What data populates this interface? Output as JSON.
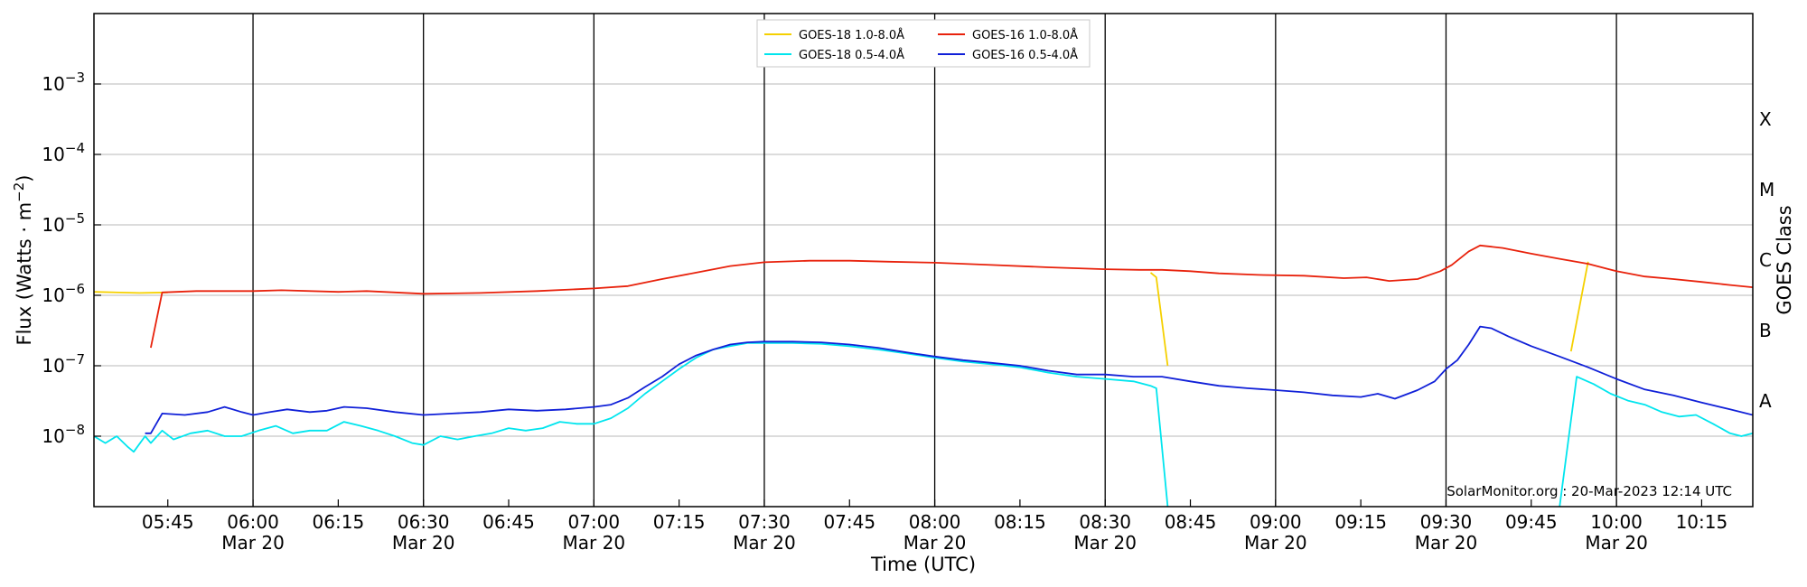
{
  "chart_data": {
    "type": "line",
    "y_scale": "log",
    "ylim": [
      1e-09,
      0.01
    ],
    "xlim": [
      "05:32",
      "10:24"
    ],
    "date": "Mar 20",
    "xlabel": "Time (UTC)",
    "ylabel_main": "Flux (Watts · m",
    "ylabel_sup": "−2",
    "ylabel_close": ")",
    "right_axis_label": "GOES Class",
    "grid": "horizontal lines at each decade; black vertical lines every 30 minutes",
    "legend_position": "top-center",
    "credit": "SolarMonitor.org : 20-Mar-2023 12:14 UTC",
    "x_ticks": [
      {
        "time": "05:45",
        "label": "05:45",
        "date_label": ""
      },
      {
        "time": "06:00",
        "label": "06:00",
        "date_label": "Mar 20"
      },
      {
        "time": "06:15",
        "label": "06:15",
        "date_label": ""
      },
      {
        "time": "06:30",
        "label": "06:30",
        "date_label": "Mar 20"
      },
      {
        "time": "06:45",
        "label": "06:45",
        "date_label": ""
      },
      {
        "time": "07:00",
        "label": "07:00",
        "date_label": "Mar 20"
      },
      {
        "time": "07:15",
        "label": "07:15",
        "date_label": ""
      },
      {
        "time": "07:30",
        "label": "07:30",
        "date_label": "Mar 20"
      },
      {
        "time": "07:45",
        "label": "07:45",
        "date_label": ""
      },
      {
        "time": "08:00",
        "label": "08:00",
        "date_label": "Mar 20"
      },
      {
        "time": "08:15",
        "label": "08:15",
        "date_label": ""
      },
      {
        "time": "08:30",
        "label": "08:30",
        "date_label": "Mar 20"
      },
      {
        "time": "08:45",
        "label": "08:45",
        "date_label": ""
      },
      {
        "time": "09:00",
        "label": "09:00",
        "date_label": "Mar 20"
      },
      {
        "time": "09:15",
        "label": "09:15",
        "date_label": ""
      },
      {
        "time": "09:30",
        "label": "09:30",
        "date_label": "Mar 20"
      },
      {
        "time": "09:45",
        "label": "09:45",
        "date_label": ""
      },
      {
        "time": "10:00",
        "label": "10:00",
        "date_label": "Mar 20"
      },
      {
        "time": "10:15",
        "label": "10:15",
        "date_label": ""
      }
    ],
    "y_ticks": [
      {
        "value": 1e-08,
        "label": "10",
        "exp": "−8"
      },
      {
        "value": 1e-07,
        "label": "10",
        "exp": "−7"
      },
      {
        "value": 1e-06,
        "label": "10",
        "exp": "−6"
      },
      {
        "value": 1e-05,
        "label": "10",
        "exp": "−5"
      },
      {
        "value": 0.0001,
        "label": "10",
        "exp": "−4"
      },
      {
        "value": 0.001,
        "label": "10",
        "exp": "−3"
      }
    ],
    "goes_classes": [
      {
        "label": "A",
        "value": 3.16e-08
      },
      {
        "label": "B",
        "value": 3.16e-07
      },
      {
        "label": "C",
        "value": 3.16e-06
      },
      {
        "label": "M",
        "value": 3.16e-05
      },
      {
        "label": "X",
        "value": 0.000316
      }
    ],
    "series": [
      {
        "name": "GOES-18 1.0-8.0Å",
        "color": "#f5d000",
        "segments": [
          [
            [
              "05:32",
              1.12e-06
            ],
            [
              "05:40",
              1.08e-06
            ],
            [
              "05:45",
              1.1e-06
            ]
          ],
          [
            [
              "08:38",
              2.1e-06
            ],
            [
              "08:39",
              1.8e-06
            ],
            [
              "08:41",
              1e-07
            ]
          ],
          [
            [
              "09:52",
              1.6e-07
            ],
            [
              "09:55",
              3e-06
            ]
          ]
        ]
      },
      {
        "name": "GOES-18 0.5-4.0Å",
        "color": "#00e5ee",
        "segments": [
          [
            [
              "05:32",
              1e-08
            ],
            [
              "05:34",
              8e-09
            ],
            [
              "05:36",
              1e-08
            ],
            [
              "05:38",
              7e-09
            ],
            [
              "05:39",
              6e-09
            ],
            [
              "05:41",
              1e-08
            ],
            [
              "05:42",
              8e-09
            ],
            [
              "05:44",
              1.2e-08
            ],
            [
              "05:46",
              9e-09
            ],
            [
              "05:49",
              1.1e-08
            ],
            [
              "05:52",
              1.2e-08
            ],
            [
              "05:55",
              1e-08
            ],
            [
              "05:58",
              1e-08
            ],
            [
              "06:01",
              1.2e-08
            ],
            [
              "06:04",
              1.4e-08
            ],
            [
              "06:07",
              1.1e-08
            ],
            [
              "06:10",
              1.2e-08
            ],
            [
              "06:13",
              1.2e-08
            ],
            [
              "06:16",
              1.6e-08
            ],
            [
              "06:19",
              1.4e-08
            ],
            [
              "06:22",
              1.2e-08
            ],
            [
              "06:25",
              1e-08
            ],
            [
              "06:28",
              8e-09
            ],
            [
              "06:30",
              7.5e-09
            ],
            [
              "06:33",
              1e-08
            ],
            [
              "06:36",
              9e-09
            ],
            [
              "06:39",
              1e-08
            ],
            [
              "06:42",
              1.1e-08
            ],
            [
              "06:45",
              1.3e-08
            ],
            [
              "06:48",
              1.2e-08
            ],
            [
              "06:51",
              1.3e-08
            ],
            [
              "06:54",
              1.6e-08
            ],
            [
              "06:57",
              1.5e-08
            ],
            [
              "07:00",
              1.5e-08
            ],
            [
              "07:03",
              1.8e-08
            ],
            [
              "07:06",
              2.5e-08
            ],
            [
              "07:09",
              4e-08
            ],
            [
              "07:12",
              6e-08
            ],
            [
              "07:15",
              9e-08
            ],
            [
              "07:18",
              1.3e-07
            ],
            [
              "07:21",
              1.7e-07
            ],
            [
              "07:24",
              1.9e-07
            ],
            [
              "07:27",
              2.1e-07
            ],
            [
              "07:30",
              2.1e-07
            ],
            [
              "07:35",
              2.1e-07
            ],
            [
              "07:40",
              2.05e-07
            ],
            [
              "07:45",
              1.9e-07
            ],
            [
              "07:50",
              1.7e-07
            ],
            [
              "07:55",
              1.5e-07
            ],
            [
              "08:00",
              1.3e-07
            ],
            [
              "08:05",
              1.15e-07
            ],
            [
              "08:10",
              1.05e-07
            ],
            [
              "08:15",
              9.5e-08
            ],
            [
              "08:20",
              8e-08
            ],
            [
              "08:25",
              7e-08
            ],
            [
              "08:30",
              6.5e-08
            ],
            [
              "08:35",
              6e-08
            ],
            [
              "08:38",
              5.2e-08
            ],
            [
              "08:39",
              4.8e-08
            ],
            [
              "08:41",
              1e-09
            ]
          ],
          [
            [
              "09:50",
              1e-09
            ],
            [
              "09:53",
              7e-08
            ],
            [
              "09:56",
              5.5e-08
            ],
            [
              "09:59",
              4e-08
            ],
            [
              "10:02",
              3.2e-08
            ],
            [
              "10:05",
              2.8e-08
            ],
            [
              "10:08",
              2.2e-08
            ],
            [
              "10:11",
              1.9e-08
            ],
            [
              "10:14",
              2e-08
            ],
            [
              "10:17",
              1.5e-08
            ],
            [
              "10:20",
              1.1e-08
            ],
            [
              "10:22",
              1e-08
            ],
            [
              "10:24",
              1.1e-08
            ]
          ]
        ]
      },
      {
        "name": "GOES-16 1.0-8.0Å",
        "color": "#e8220c",
        "segments": [
          [
            [
              "05:42",
              1.8e-07
            ],
            [
              "05:44",
              1.1e-06
            ],
            [
              "05:50",
              1.15e-06
            ],
            [
              "06:00",
              1.15e-06
            ],
            [
              "06:05",
              1.18e-06
            ],
            [
              "06:15",
              1.12e-06
            ],
            [
              "06:20",
              1.15e-06
            ],
            [
              "06:30",
              1.05e-06
            ],
            [
              "06:40",
              1.08e-06
            ],
            [
              "06:50",
              1.15e-06
            ],
            [
              "07:00",
              1.25e-06
            ],
            [
              "07:06",
              1.35e-06
            ],
            [
              "07:12",
              1.7e-06
            ],
            [
              "07:18",
              2.1e-06
            ],
            [
              "07:24",
              2.6e-06
            ],
            [
              "07:30",
              2.95e-06
            ],
            [
              "07:38",
              3.1e-06
            ],
            [
              "07:45",
              3.1e-06
            ],
            [
              "07:52",
              3e-06
            ],
            [
              "08:00",
              2.9e-06
            ],
            [
              "08:10",
              2.7e-06
            ],
            [
              "08:20",
              2.5e-06
            ],
            [
              "08:30",
              2.35e-06
            ],
            [
              "08:36",
              2.3e-06
            ],
            [
              "08:40",
              2.3e-06
            ],
            [
              "08:45",
              2.2e-06
            ],
            [
              "08:50",
              2.05e-06
            ],
            [
              "08:57",
              1.95e-06
            ],
            [
              "09:05",
              1.9e-06
            ],
            [
              "09:12",
              1.75e-06
            ],
            [
              "09:16",
              1.8e-06
            ],
            [
              "09:20",
              1.6e-06
            ],
            [
              "09:25",
              1.7e-06
            ],
            [
              "09:29",
              2.2e-06
            ],
            [
              "09:31",
              2.7e-06
            ],
            [
              "09:34",
              4.2e-06
            ],
            [
              "09:36",
              5.1e-06
            ],
            [
              "09:40",
              4.7e-06
            ],
            [
              "09:45",
              3.9e-06
            ],
            [
              "09:50",
              3.3e-06
            ],
            [
              "09:55",
              2.8e-06
            ],
            [
              "10:00",
              2.2e-06
            ],
            [
              "10:05",
              1.85e-06
            ],
            [
              "10:10",
              1.7e-06
            ],
            [
              "10:15",
              1.55e-06
            ],
            [
              "10:20",
              1.4e-06
            ],
            [
              "10:24",
              1.3e-06
            ]
          ]
        ]
      },
      {
        "name": "GOES-16 0.5-4.0Å",
        "color": "#1020d8",
        "segments": [
          [
            [
              "05:41",
              1.1e-08
            ],
            [
              "05:42",
              1.1e-08
            ],
            [
              "05:44",
              2.1e-08
            ],
            [
              "05:48",
              2e-08
            ],
            [
              "05:52",
              2.2e-08
            ],
            [
              "05:55",
              2.6e-08
            ],
            [
              "05:58",
              2.2e-08
            ],
            [
              "06:00",
              2e-08
            ],
            [
              "06:03",
              2.2e-08
            ],
            [
              "06:06",
              2.4e-08
            ],
            [
              "06:10",
              2.2e-08
            ],
            [
              "06:13",
              2.3e-08
            ],
            [
              "06:16",
              2.6e-08
            ],
            [
              "06:20",
              2.5e-08
            ],
            [
              "06:25",
              2.2e-08
            ],
            [
              "06:30",
              2e-08
            ],
            [
              "06:35",
              2.1e-08
            ],
            [
              "06:40",
              2.2e-08
            ],
            [
              "06:45",
              2.4e-08
            ],
            [
              "06:50",
              2.3e-08
            ],
            [
              "06:55",
              2.4e-08
            ],
            [
              "07:00",
              2.6e-08
            ],
            [
              "07:03",
              2.8e-08
            ],
            [
              "07:06",
              3.5e-08
            ],
            [
              "07:09",
              5e-08
            ],
            [
              "07:12",
              7e-08
            ],
            [
              "07:15",
              1.05e-07
            ],
            [
              "07:18",
              1.4e-07
            ],
            [
              "07:21",
              1.7e-07
            ],
            [
              "07:24",
              2e-07
            ],
            [
              "07:27",
              2.15e-07
            ],
            [
              "07:30",
              2.2e-07
            ],
            [
              "07:35",
              2.2e-07
            ],
            [
              "07:40",
              2.15e-07
            ],
            [
              "07:45",
              2e-07
            ],
            [
              "07:50",
              1.8e-07
            ],
            [
              "07:55",
              1.55e-07
            ],
            [
              "08:00",
              1.35e-07
            ],
            [
              "08:05",
              1.2e-07
            ],
            [
              "08:10",
              1.1e-07
            ],
            [
              "08:15",
              1e-07
            ],
            [
              "08:20",
              8.5e-08
            ],
            [
              "08:25",
              7.5e-08
            ],
            [
              "08:30",
              7.5e-08
            ],
            [
              "08:35",
              7e-08
            ],
            [
              "08:40",
              7e-08
            ],
            [
              "08:45",
              6e-08
            ],
            [
              "08:50",
              5.2e-08
            ],
            [
              "08:55",
              4.8e-08
            ],
            [
              "09:00",
              4.5e-08
            ],
            [
              "09:05",
              4.2e-08
            ],
            [
              "09:10",
              3.8e-08
            ],
            [
              "09:15",
              3.6e-08
            ],
            [
              "09:18",
              4e-08
            ],
            [
              "09:21",
              3.4e-08
            ],
            [
              "09:25",
              4.5e-08
            ],
            [
              "09:28",
              6e-08
            ],
            [
              "09:30",
              9e-08
            ],
            [
              "09:32",
              1.2e-07
            ],
            [
              "09:34",
              2e-07
            ],
            [
              "09:36",
              3.6e-07
            ],
            [
              "09:38",
              3.4e-07
            ],
            [
              "09:41",
              2.6e-07
            ],
            [
              "09:45",
              1.9e-07
            ],
            [
              "09:50",
              1.35e-07
            ],
            [
              "09:55",
              9.5e-08
            ],
            [
              "10:00",
              6.5e-08
            ],
            [
              "10:05",
              4.6e-08
            ],
            [
              "10:10",
              3.8e-08
            ],
            [
              "10:15",
              3e-08
            ],
            [
              "10:20",
              2.4e-08
            ],
            [
              "10:24",
              2e-08
            ]
          ]
        ]
      }
    ]
  }
}
